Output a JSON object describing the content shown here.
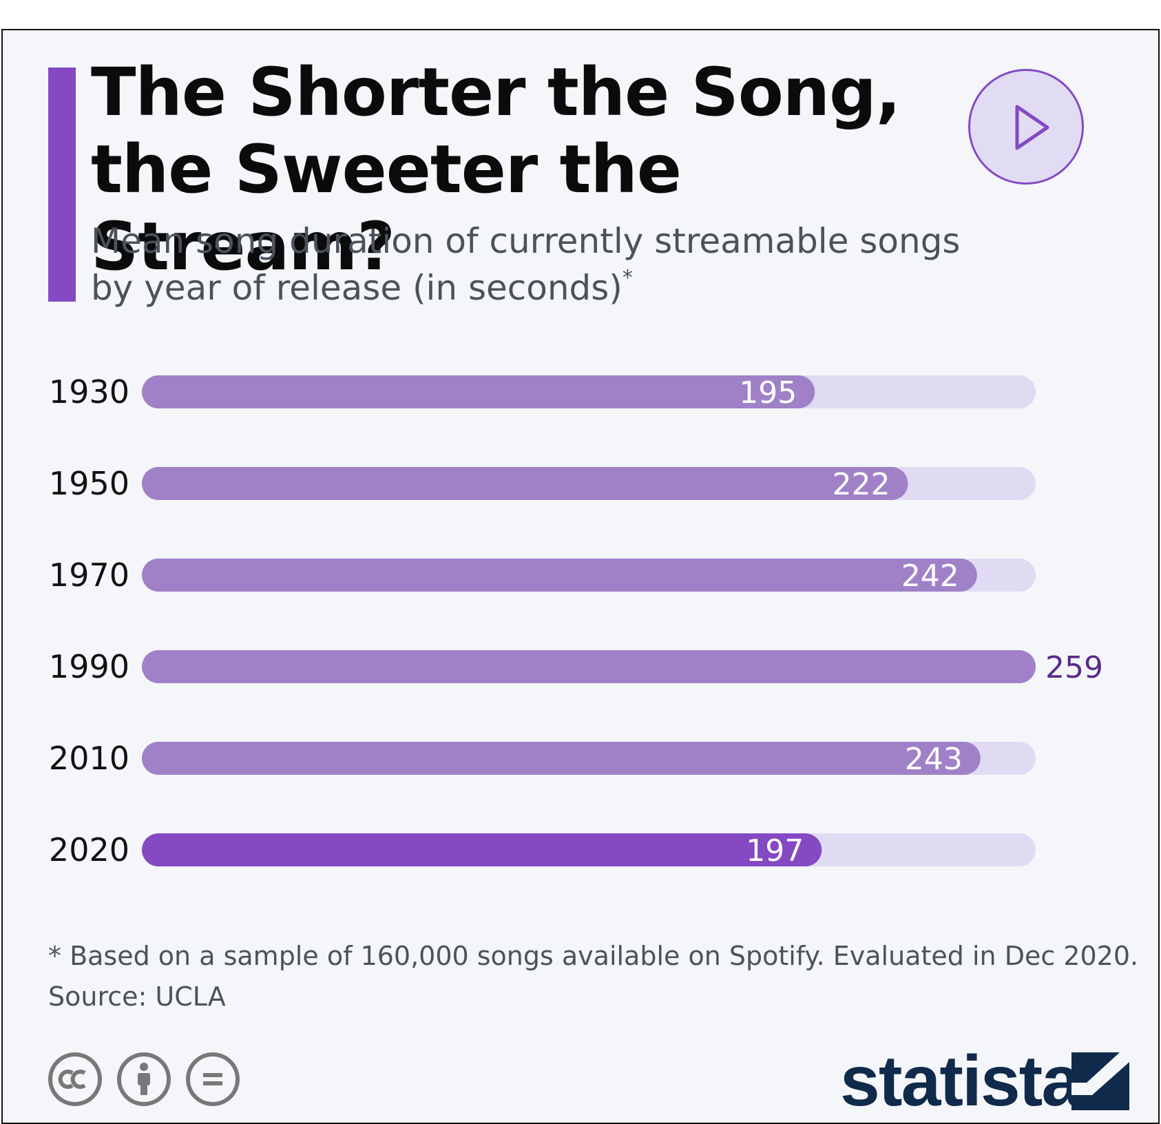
{
  "header": {
    "title": "The Shorter the Song, the Sweeter the Stream?",
    "subtitle": "Mean song duration of currently streamable songs by year of release (in seconds)",
    "subtitle_marker": "*"
  },
  "chart_data": {
    "type": "bar",
    "orientation": "horizontal",
    "title": "The Shorter the Song, the Sweeter the Stream?",
    "subtitle": "Mean song duration of currently streamable songs by year of release (in seconds)*",
    "categories": [
      "1930",
      "1950",
      "1970",
      "1990",
      "2010",
      "2020"
    ],
    "values": [
      195,
      222,
      242,
      259,
      243,
      197
    ],
    "xlim": [
      0,
      259
    ],
    "grid": false,
    "legend": "none",
    "colors": {
      "bar": "#a081c8",
      "highlight": "#8549c4",
      "track": "#e0dbf3",
      "label_inside": "#ffffff",
      "label_outside": "#5a2a8c"
    },
    "highlight_category": "2020"
  },
  "footer": {
    "note": "* Based on a sample of 160,000 songs available on Spotify. Evaluated in Dec 2020.",
    "source": "Source: UCLA",
    "license_icons": [
      "cc-icon",
      "by-icon",
      "nd-icon"
    ],
    "brand": "statista",
    "brand_color": "#0f2a4a"
  },
  "controls": {
    "play_icon": "play-icon"
  }
}
